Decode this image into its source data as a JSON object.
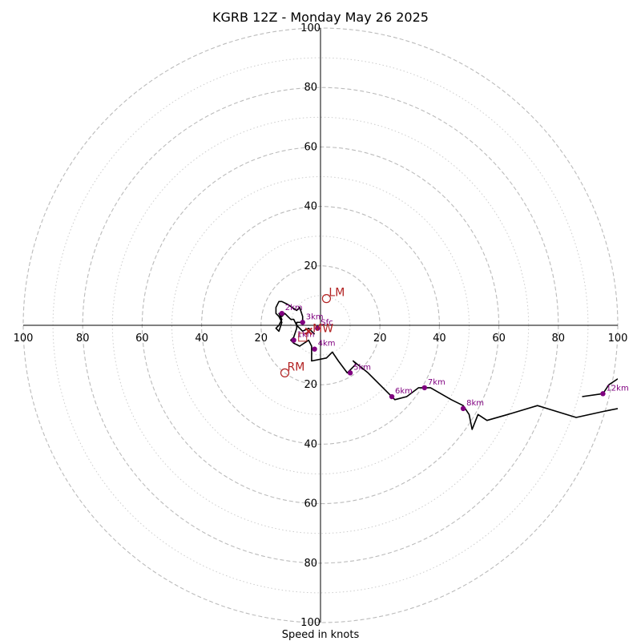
{
  "chart_data": {
    "type": "hodograph",
    "title": "KGRB 12Z - Monday May 26 2025",
    "xlabel": "Speed in knots",
    "ring_labels": [
      "20",
      "40",
      "60",
      "80",
      "100"
    ],
    "xlim": [
      -100,
      100
    ],
    "ylim": [
      -100,
      100
    ],
    "rings_dashed": [
      20,
      40,
      60,
      80,
      100
    ],
    "rings_dotted": [
      10,
      30,
      50,
      70,
      90
    ],
    "grid": true,
    "colors": {
      "trace": "#000000",
      "height_marker": "#800080",
      "storm_motion": "#b22222",
      "ring": "#bbbbbb",
      "axis": "#000000"
    },
    "trace": [
      [
        -2,
        -3
      ],
      [
        -4,
        -1
      ],
      [
        -6,
        -2
      ],
      [
        -8,
        0
      ],
      [
        -9,
        2
      ],
      [
        -10,
        2
      ],
      [
        -11,
        3
      ],
      [
        -12,
        4
      ],
      [
        -13,
        3
      ],
      [
        -14,
        4
      ],
      [
        -13,
        2
      ],
      [
        -14,
        0
      ],
      [
        -15,
        -1
      ],
      [
        -14,
        -2
      ],
      [
        -13,
        1
      ],
      [
        -14,
        3
      ],
      [
        -15,
        4
      ],
      [
        -15,
        6
      ],
      [
        -14,
        8
      ],
      [
        -13,
        8
      ],
      [
        -11,
        7
      ],
      [
        -8,
        5
      ],
      [
        -7,
        6
      ],
      [
        -6,
        3
      ],
      [
        -6,
        1
      ],
      [
        -8,
        1
      ],
      [
        -8,
        -1
      ],
      [
        -9,
        -4
      ],
      [
        -10,
        -5
      ],
      [
        -9,
        -6
      ],
      [
        -7,
        -7
      ],
      [
        -4,
        -5
      ],
      [
        -3,
        -7
      ],
      [
        -3,
        -12
      ],
      [
        2,
        -11
      ],
      [
        4,
        -9
      ],
      [
        6,
        -12
      ],
      [
        9,
        -16
      ],
      [
        12,
        -13
      ],
      [
        11,
        -12
      ],
      [
        16,
        -16
      ],
      [
        23,
        -23
      ],
      [
        25,
        -25
      ],
      [
        29,
        -24
      ],
      [
        33,
        -21
      ],
      [
        37,
        -21
      ],
      [
        44,
        -25
      ],
      [
        48,
        -27
      ],
      [
        50,
        -30
      ],
      [
        51,
        -35
      ],
      [
        53,
        -30
      ],
      [
        56,
        -32
      ],
      [
        63,
        -30
      ],
      [
        73,
        -27
      ],
      [
        86,
        -31
      ],
      [
        95,
        -29
      ],
      [
        100,
        -28
      ]
    ],
    "tail": [
      [
        100,
        -18
      ],
      [
        97,
        -20
      ],
      [
        95,
        -23
      ],
      [
        88,
        -24
      ]
    ],
    "height_markers": [
      {
        "label": "Sfc",
        "u": -1,
        "v": -1
      },
      {
        "label": "1km",
        "u": -9,
        "v": -5
      },
      {
        "label": "2km",
        "u": -13,
        "v": 4
      },
      {
        "label": "3km",
        "u": -6,
        "v": 1
      },
      {
        "label": "4km",
        "u": -2,
        "v": -8
      },
      {
        "label": "5km",
        "u": 10,
        "v": -16
      },
      {
        "label": "6km",
        "u": 24,
        "v": -24
      },
      {
        "label": "7km",
        "u": 35,
        "v": -21
      },
      {
        "label": "8km",
        "u": 48,
        "v": -28
      },
      {
        "label": "12km",
        "u": 95,
        "v": -23
      }
    ],
    "storm_motion": [
      {
        "label": "LM",
        "u": 2,
        "v": 9
      },
      {
        "label": "RM",
        "u": -12,
        "v": -16
      },
      {
        "label": "MW",
        "u": -4,
        "v": -2
      }
    ],
    "bunkers_box": {
      "u": -6,
      "v": -4
    }
  }
}
